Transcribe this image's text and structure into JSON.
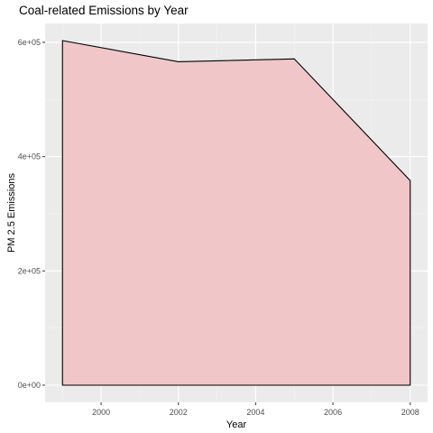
{
  "chart_data": {
    "type": "area",
    "title": "Coal-related Emissions by Year",
    "xlabel": "Year",
    "ylabel": "PM 2.5 Emissions",
    "x": [
      1999,
      2002,
      2005,
      2008
    ],
    "series": [
      {
        "values": [
          603000,
          566000,
          571000,
          358000
        ]
      }
    ],
    "xlim": [
      1998.55,
      2008.45
    ],
    "ylim": [
      -30000,
      633000
    ],
    "x_ticks": [
      2000,
      2002,
      2004,
      2006,
      2008
    ],
    "x_tick_labels": [
      "2000",
      "2002",
      "2004",
      "2006",
      "2008"
    ],
    "y_ticks": [
      0,
      200000,
      400000,
      600000
    ],
    "y_tick_labels": [
      "0e+00",
      "2e+05",
      "4e+05",
      "6e+05"
    ],
    "grid": true,
    "legend": "none",
    "colors": {
      "panel_background": "#ebebeb",
      "grid_major": "#ffffff",
      "grid_minor": "#f5f5f5",
      "area_fill": "#f1c6c9",
      "area_outline": "#000000"
    }
  }
}
